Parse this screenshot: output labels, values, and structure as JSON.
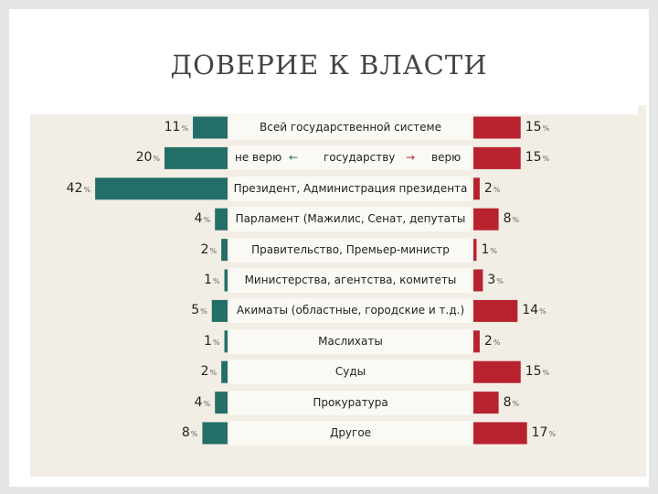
{
  "slide_title": "ДОВЕРИЕ К ВЛАСТИ",
  "colors": {
    "distrust": "#236f68",
    "trust": "#b8222f"
  },
  "header_row": {
    "left": "не верю",
    "middle": "государству",
    "right": "верю",
    "left_arrow": "←",
    "right_arrow": "→"
  },
  "pct_sign": "%",
  "chart_data": {
    "type": "bar",
    "orientation": "diverging-horizontal",
    "categories": [
      "Всей государственной системе",
      "государству",
      "Президент, Администрация президента",
      "Парламент (Мажилис, Сенат, депутаты",
      "Правительство, Премьер-министр",
      "Министерства, агентства, комитеты",
      "Акиматы (областные, городские и т.д.)",
      "Маслихаты",
      "Суды",
      "Прокуратура",
      "Другое"
    ],
    "series": [
      {
        "name": "не верю",
        "values": [
          11,
          20,
          42,
          4,
          2,
          1,
          5,
          1,
          2,
          4,
          8
        ],
        "color": "#236f68"
      },
      {
        "name": "верю",
        "values": [
          15,
          15,
          2,
          8,
          1,
          3,
          14,
          2,
          15,
          8,
          17
        ],
        "color": "#b8222f"
      }
    ],
    "unit": "%"
  }
}
